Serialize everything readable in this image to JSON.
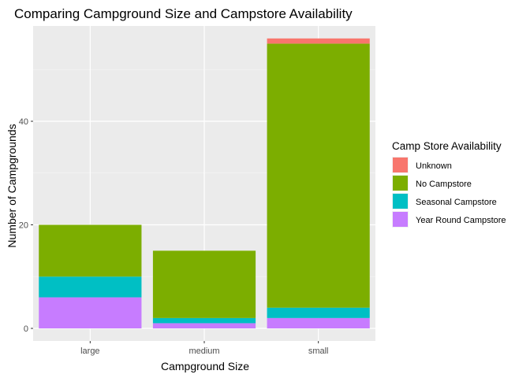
{
  "chart_data": {
    "type": "bar",
    "stacked": true,
    "title": "Comparing Campground Size and Campstore Availability",
    "xlabel": "Campground Size",
    "ylabel": "Number of Campgrounds",
    "categories": [
      "large",
      "medium",
      "small"
    ],
    "ylim": [
      0,
      57
    ],
    "yticks": [
      0,
      20,
      40
    ],
    "grid": true,
    "legend": {
      "title": "Camp Store Availability",
      "position": "right"
    },
    "series": [
      {
        "name": "Year Round Campstore",
        "color": "#C77CFF",
        "values": [
          6,
          1,
          2
        ]
      },
      {
        "name": "Seasonal Campstore",
        "color": "#00BFC4",
        "values": [
          4,
          1,
          2
        ]
      },
      {
        "name": "No Campstore",
        "color": "#7CAE00",
        "values": [
          10,
          13,
          51
        ]
      },
      {
        "name": "Unknown",
        "color": "#F8766D",
        "values": [
          0,
          0,
          1
        ]
      }
    ],
    "legend_order": [
      "Unknown",
      "No Campstore",
      "Seasonal Campstore",
      "Year Round Campstore"
    ]
  }
}
